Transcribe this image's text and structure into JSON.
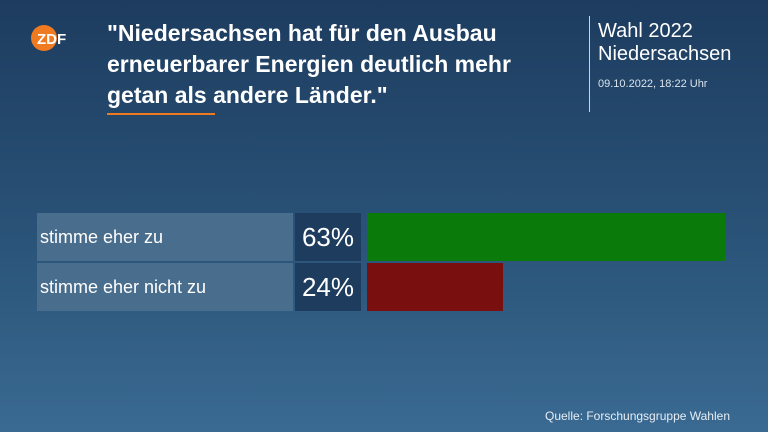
{
  "brand": {
    "logo_text": "ZDF",
    "accent": "#f07a1f"
  },
  "header": {
    "title": "\"Niedersachsen hat für den Ausbau erneuerbarer Energien deutlich mehr getan als andere Länder.\"",
    "event": "Wahl 2022",
    "region": "Niedersachsen",
    "timestamp": "09.10.2022, 18:22 Uhr"
  },
  "footer": {
    "source": "Quelle: Forschungsgruppe Wahlen"
  },
  "chart_data": {
    "type": "bar",
    "title": "\"Niedersachsen hat für den Ausbau erneuerbarer Energien deutlich mehr getan als andere Länder.\"",
    "categories": [
      "stimme eher zu",
      "stimme eher nicht zu"
    ],
    "values": [
      63,
      24
    ],
    "value_labels": [
      "63%",
      "24%"
    ],
    "colors": [
      "#0a7a0a",
      "#7a0f10"
    ],
    "unit": "%",
    "orientation": "horizontal",
    "xlim": [
      0,
      100
    ],
    "grid": false
  }
}
